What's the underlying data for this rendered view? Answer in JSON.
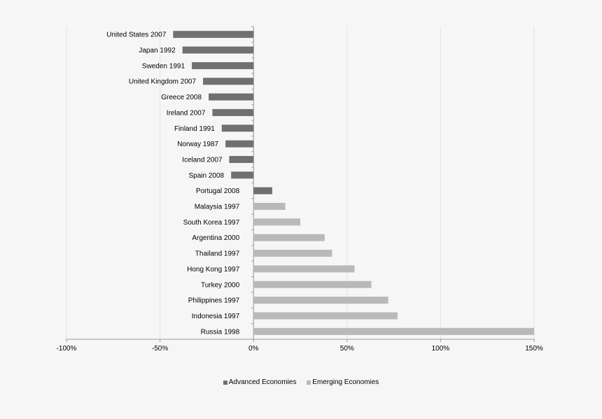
{
  "chart_data": {
    "type": "bar",
    "orientation": "horizontal",
    "categories": [
      "United States 2007",
      "Japan 1992",
      "Sweden 1991",
      "United Kingdom 2007",
      "Greece 2008",
      "Ireland 2007",
      "Finland 1991",
      "Norway 1987",
      "Iceland 2007",
      "Spain 2008",
      "Portugal 2008",
      "Malaysia 1997",
      "South Korea 1997",
      "Argentina 2000",
      "Thailand 1997",
      "Hong Kong 1997",
      "Turkey 2000",
      "Philippines 1997",
      "Indonesia 1997",
      "Russia 1998"
    ],
    "values": [
      -43,
      -38,
      -33,
      -27,
      -24,
      -22,
      -17,
      -15,
      -13,
      -12,
      10,
      17,
      25,
      38,
      42,
      54,
      63,
      72,
      77,
      150
    ],
    "groups": [
      "advanced",
      "advanced",
      "advanced",
      "advanced",
      "advanced",
      "advanced",
      "advanced",
      "advanced",
      "advanced",
      "advanced",
      "advanced",
      "emerging",
      "emerging",
      "emerging",
      "emerging",
      "emerging",
      "emerging",
      "emerging",
      "emerging",
      "emerging"
    ],
    "series": [
      {
        "name": "Advanced Economies",
        "color": "#707070"
      },
      {
        "name": "Emerging Economies",
        "color": "#b9b9b9"
      }
    ],
    "xlim": [
      -100,
      150
    ],
    "xticks": [
      -100,
      -50,
      0,
      50,
      100,
      150
    ],
    "xtick_labels": [
      "-100%",
      "-50%",
      "0%",
      "50%",
      "100%",
      "150%"
    ],
    "grid": true,
    "legend_position": "bottom",
    "title": "",
    "xlabel": "",
    "ylabel": ""
  },
  "legend": {
    "advanced_label": "Advanced Economies",
    "emerging_label": "Emerging Economies"
  }
}
